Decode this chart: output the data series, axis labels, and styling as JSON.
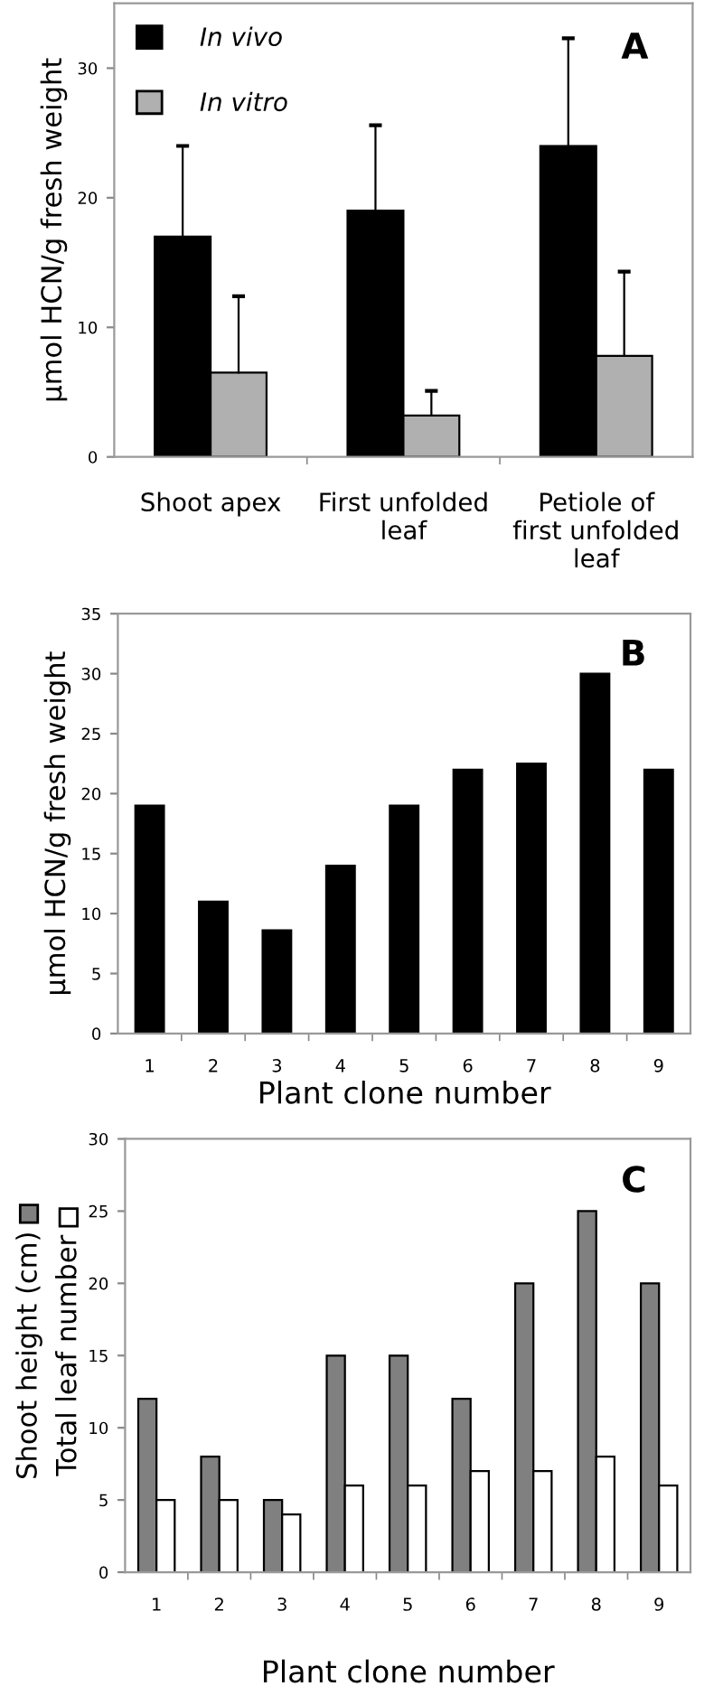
{
  "chart_data": [
    {
      "type": "bar",
      "ylabel": "µmol HCN/g fresh weight",
      "annotations": [
        "A"
      ],
      "categories": [
        "Shoot apex",
        "First unfolded\nleaf",
        "Petiole of\nfirst unfolded\nleaf"
      ],
      "series": [
        {
          "name": "In vivo",
          "color": "#000000",
          "values": [
            17,
            19,
            24
          ],
          "errors": [
            [
              17,
              24
            ],
            [
              19,
              25.6
            ],
            [
              24,
              32.3
            ]
          ]
        },
        {
          "name": "In vitro",
          "color": "#b0b0b0",
          "values": [
            6.5,
            3.2,
            7.8
          ],
          "errors": [
            [
              6.5,
              12.4
            ],
            [
              3.2,
              5.1
            ],
            [
              7.8,
              14.3
            ]
          ]
        }
      ],
      "ylim": [
        0,
        35
      ],
      "yticks": [
        0,
        10,
        20,
        30
      ],
      "grid": false,
      "legend": "top left"
    },
    {
      "type": "bar",
      "ylabel": "µmol HCN/g fresh weight",
      "xlabel": "Plant clone number",
      "annotations": [
        "B"
      ],
      "categories": [
        "1",
        "2",
        "3",
        "4",
        "5",
        "6",
        "7",
        "8",
        "9"
      ],
      "series": [
        {
          "color": "#000000",
          "values": [
            19,
            11,
            8.6,
            14,
            19,
            22,
            22.5,
            30,
            22
          ]
        }
      ],
      "ylim": [
        0,
        35
      ],
      "yticks": [
        0,
        5,
        10,
        15,
        20,
        25,
        30,
        35
      ],
      "grid": false,
      "legend": false
    },
    {
      "type": "bar",
      "xlabel": "Plant clone number",
      "annotations": [
        "C"
      ],
      "categories": [
        "1",
        "2",
        "3",
        "4",
        "5",
        "6",
        "7",
        "8",
        "9"
      ],
      "series": [
        {
          "name": "Shoot height (cm)",
          "color": "#808080",
          "values": [
            12,
            8,
            5,
            15,
            15,
            12,
            20,
            25,
            20
          ]
        },
        {
          "name": "Total leaf number",
          "color": "#ffffff",
          "values": [
            5,
            5,
            4,
            6,
            6,
            7,
            7,
            8,
            6
          ]
        }
      ],
      "ylim": [
        0,
        30
      ],
      "yticks": [
        0,
        5,
        10,
        15,
        20,
        25,
        30
      ],
      "grid": false,
      "legend": "left"
    }
  ]
}
